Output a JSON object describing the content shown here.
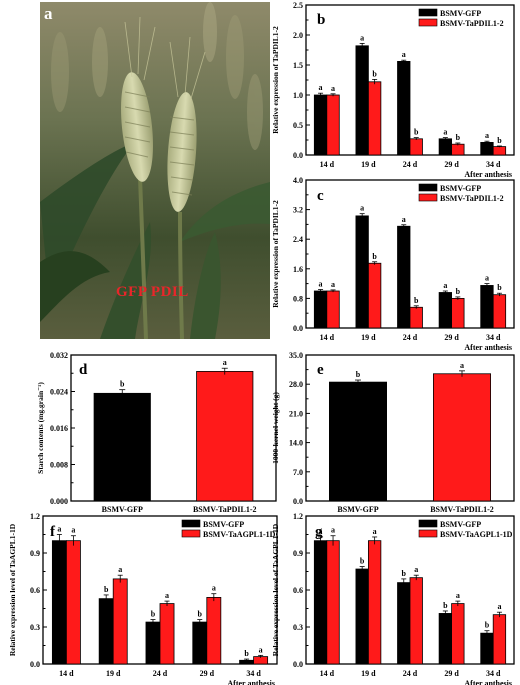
{
  "photo": {
    "panel_label": "a",
    "overlay_text": "GFP PDIL",
    "overlay_color": "#e8262a"
  },
  "colors": {
    "gfp": "#000000",
    "treatment": "#ff1a1a"
  },
  "chart_data": [
    {
      "panel": "b",
      "type": "bar",
      "categories": [
        "14 d",
        "19 d",
        "24 d",
        "29 d",
        "34 d"
      ],
      "series": [
        {
          "name": "BSMV-GFP",
          "values": [
            1.0,
            1.82,
            1.56,
            0.27,
            0.21
          ],
          "errors": [
            0.03,
            0.04,
            0.02,
            0.02,
            0.02
          ],
          "letters": [
            "a",
            "a",
            "a",
            "a",
            "a"
          ]
        },
        {
          "name": "BSMV-TaPDIL1-2",
          "values": [
            1.0,
            1.22,
            0.27,
            0.18,
            0.14
          ],
          "errors": [
            0.02,
            0.04,
            0.02,
            0.02,
            0.01
          ],
          "letters": [
            "a",
            "b",
            "b",
            "b",
            "b"
          ]
        }
      ],
      "ylabel": "Relative expression of TaPDIL1-2",
      "xlabel": "After anthesis",
      "ylim": [
        0,
        2.5
      ],
      "yticks": [
        "0.0",
        "0.5",
        "1.0",
        "1.5",
        "2.0",
        "2.5"
      ],
      "legend_position": "top-right"
    },
    {
      "panel": "c",
      "type": "bar",
      "categories": [
        "14 d",
        "19 d",
        "24 d",
        "29 d",
        "34 d"
      ],
      "series": [
        {
          "name": "BSMV-GFP",
          "values": [
            1.0,
            3.03,
            2.75,
            0.96,
            1.15
          ],
          "errors": [
            0.04,
            0.06,
            0.04,
            0.04,
            0.05
          ],
          "letters": [
            "a",
            "a",
            "a",
            "a",
            "a"
          ]
        },
        {
          "name": "BSMV-TaPDIL1-2",
          "values": [
            1.0,
            1.75,
            0.56,
            0.8,
            0.9
          ],
          "errors": [
            0.03,
            0.04,
            0.04,
            0.04,
            0.04
          ],
          "letters": [
            "a",
            "b",
            "b",
            "b",
            "b"
          ]
        }
      ],
      "ylabel": "Relative expression of TaPDIL1-2",
      "xlabel": "After anthesis",
      "ylim": [
        0,
        4.0
      ],
      "yticks": [
        "0.0",
        "0.8",
        "1.6",
        "2.4",
        "3.2",
        "4.0"
      ],
      "legend_position": "top-right"
    },
    {
      "panel": "d",
      "type": "bar",
      "categories": [
        "BSMV-GFP",
        "BSMV-TaPDIL1-2"
      ],
      "values": [
        0.0236,
        0.0284
      ],
      "errors": [
        0.0008,
        0.0007
      ],
      "letters": [
        "b",
        "a"
      ],
      "ylabel": "Starch contents (mg.grain⁻¹)",
      "ylim": [
        0,
        0.032
      ],
      "yticks": [
        "0.000",
        "0.008",
        "0.016",
        "0.024",
        "0.032"
      ]
    },
    {
      "panel": "e",
      "type": "bar",
      "categories": [
        "BSMV-GFP",
        "BSMV-TaPDIL1-2"
      ],
      "values": [
        28.5,
        30.5
      ],
      "errors": [
        0.5,
        0.7
      ],
      "letters": [
        "b",
        "a"
      ],
      "ylabel": "1000-kernel weight (g)",
      "ylim": [
        0,
        35
      ],
      "yticks": [
        "0.0",
        "7.0",
        "14.0",
        "21.0",
        "28.0",
        "35.0"
      ]
    },
    {
      "panel": "f",
      "type": "bar",
      "categories": [
        "14 d",
        "19 d",
        "24 d",
        "29 d",
        "34 d"
      ],
      "series": [
        {
          "name": "BSMV-GFP",
          "values": [
            1.0,
            0.53,
            0.34,
            0.34,
            0.03
          ],
          "errors": [
            0.05,
            0.03,
            0.02,
            0.02,
            0.01
          ],
          "letters": [
            "a",
            "b",
            "b",
            "b",
            "b"
          ]
        },
        {
          "name": "BSMV-TaAGPL1-1D",
          "values": [
            1.0,
            0.69,
            0.49,
            0.54,
            0.06
          ],
          "errors": [
            0.04,
            0.03,
            0.02,
            0.03,
            0.01
          ],
          "letters": [
            "a",
            "a",
            "a",
            "a",
            "a"
          ]
        }
      ],
      "ylabel": "Relative expression level of TaAGPL1-1D",
      "xlabel": "After anthesis",
      "ylim": [
        0,
        1.2
      ],
      "yticks": [
        "0.0",
        "0.3",
        "0.6",
        "0.9",
        "1.2"
      ],
      "legend_position": "top-right"
    },
    {
      "panel": "g",
      "type": "bar",
      "categories": [
        "14 d",
        "19 d",
        "24 d",
        "29 d",
        "34 d"
      ],
      "series": [
        {
          "name": "BSMV-GFP",
          "values": [
            1.0,
            0.77,
            0.66,
            0.41,
            0.25
          ],
          "errors": [
            0.03,
            0.02,
            0.03,
            0.02,
            0.02
          ],
          "letters": [
            "a",
            "b",
            "b",
            "b",
            "b"
          ]
        },
        {
          "name": "BSMV-TaAGPL1-1D",
          "values": [
            1.0,
            1.0,
            0.7,
            0.49,
            0.4
          ],
          "errors": [
            0.04,
            0.03,
            0.02,
            0.02,
            0.02
          ],
          "letters": [
            "a",
            "a",
            "a",
            "a",
            "a"
          ]
        }
      ],
      "ylabel": "Relative expression level of TaAGPL1-1D",
      "xlabel": "After anthesis",
      "ylim": [
        0,
        1.2
      ],
      "yticks": [
        "0.0",
        "0.3",
        "0.6",
        "0.9",
        "1.2"
      ],
      "legend_position": "top-right"
    }
  ]
}
